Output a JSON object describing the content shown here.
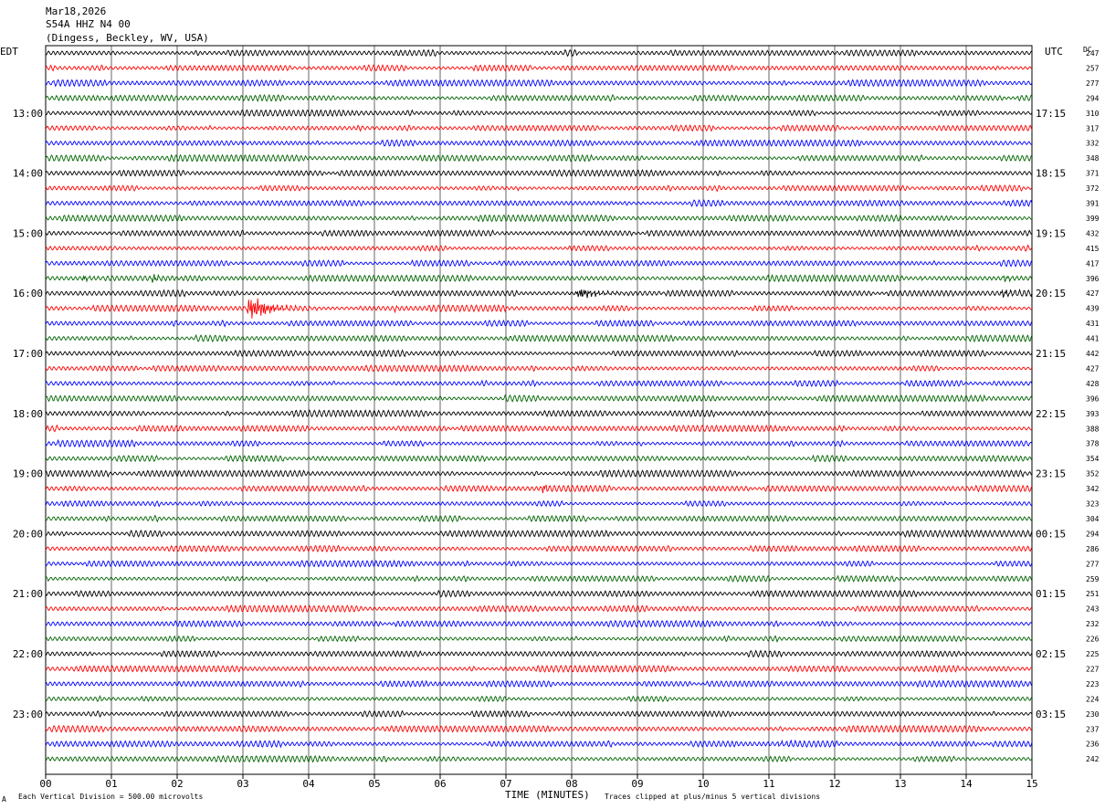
{
  "header": {
    "date": "Mar18,2026",
    "station": "S54A HHZ N4 00",
    "location": "(Dingess, Beckley, WV, USA)"
  },
  "left_axis_title": "EDT",
  "right_axis_title": "UTC",
  "dc_label": "DC",
  "footer": {
    "scale_note": "Each Vertical Division =  500.00 microvolts",
    "clip_note": "Traces clipped at plus/minus 5 vertical divisions",
    "corner_mark": "A"
  },
  "chart_data": {
    "type": "line",
    "title": "",
    "xlabel": "TIME (MINUTES)",
    "ylabel": "",
    "xlim": [
      0,
      15
    ],
    "x_ticks": [
      "00",
      "01",
      "02",
      "03",
      "04",
      "05",
      "06",
      "07",
      "08",
      "09",
      "10",
      "11",
      "12",
      "13",
      "14",
      "15"
    ],
    "grid": true,
    "trace_colors": [
      "#000000",
      "#ff0000",
      "#0000ff",
      "#006400"
    ],
    "num_traces": 48,
    "edt_labels": [
      {
        "row": 4,
        "text": "13:00"
      },
      {
        "row": 8,
        "text": "14:00"
      },
      {
        "row": 12,
        "text": "15:00"
      },
      {
        "row": 16,
        "text": "16:00"
      },
      {
        "row": 20,
        "text": "17:00"
      },
      {
        "row": 24,
        "text": "18:00"
      },
      {
        "row": 28,
        "text": "19:00"
      },
      {
        "row": 32,
        "text": "20:00"
      },
      {
        "row": 36,
        "text": "21:00"
      },
      {
        "row": 40,
        "text": "22:00"
      },
      {
        "row": 44,
        "text": "23:00"
      }
    ],
    "utc_labels": [
      {
        "row": 4,
        "text": "17:15"
      },
      {
        "row": 8,
        "text": "18:15"
      },
      {
        "row": 12,
        "text": "19:15"
      },
      {
        "row": 16,
        "text": "20:15"
      },
      {
        "row": 20,
        "text": "21:15"
      },
      {
        "row": 24,
        "text": "22:15"
      },
      {
        "row": 28,
        "text": "23:15"
      },
      {
        "row": 32,
        "text": "00:15"
      },
      {
        "row": 36,
        "text": "01:15"
      },
      {
        "row": 40,
        "text": "02:15"
      },
      {
        "row": 44,
        "text": "03:15"
      }
    ],
    "dc_offsets": [
      247,
      257,
      277,
      294,
      310,
      317,
      332,
      348,
      371,
      372,
      391,
      399,
      432,
      415,
      417,
      396,
      427,
      439,
      431,
      441,
      442,
      427,
      428,
      396,
      393,
      388,
      378,
      354,
      352,
      342,
      323,
      304,
      294,
      286,
      277,
      259,
      251,
      243,
      232,
      226,
      225,
      227,
      223,
      224,
      230,
      237,
      236,
      242
    ],
    "events": [
      {
        "row": 15,
        "minute": 0.55,
        "duration": 0.35,
        "amplitude_div": 1.0
      },
      {
        "row": 15,
        "minute": 1.6,
        "duration": 0.3,
        "amplitude_div": 1.6
      },
      {
        "row": 15,
        "minute": 13.3,
        "duration": 0.2,
        "amplitude_div": 0.6
      },
      {
        "row": 15,
        "minute": 14.55,
        "duration": 0.3,
        "amplitude_div": 1.1
      },
      {
        "row": 16,
        "minute": 8.05,
        "duration": 1.0,
        "amplitude_div": 2.0
      },
      {
        "row": 16,
        "minute": 14.5,
        "duration": 0.5,
        "amplitude_div": 1.2
      },
      {
        "row": 17,
        "minute": 3.05,
        "duration": 0.9,
        "amplitude_div": 5.0
      },
      {
        "row": 17,
        "minute": 5.3,
        "duration": 0.12,
        "amplitude_div": 1.4
      },
      {
        "row": 17,
        "minute": 4.1,
        "duration": 0.15,
        "amplitude_div": 0.5
      },
      {
        "row": 29,
        "minute": 7.55,
        "duration": 0.15,
        "amplitude_div": 2.0
      },
      {
        "row": 46,
        "minute": 11.1,
        "duration": 0.7,
        "amplitude_div": 0.6
      }
    ]
  }
}
